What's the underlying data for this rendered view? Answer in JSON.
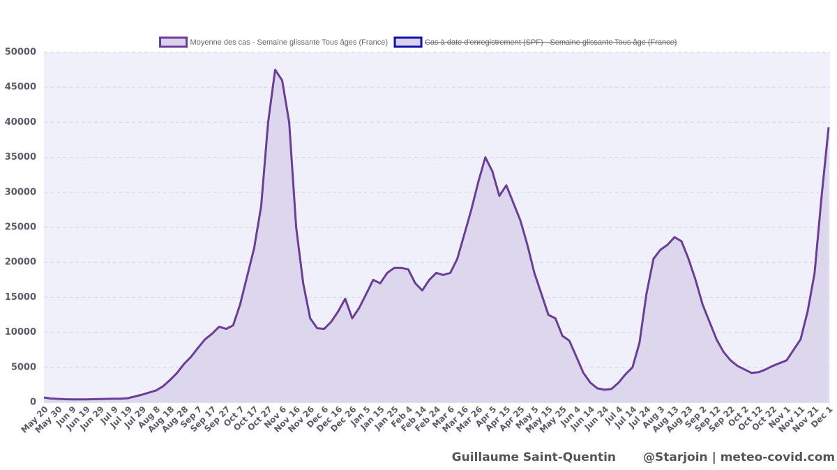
{
  "chart_data": {
    "type": "line",
    "series": [
      {
        "name": "Moyenne des cas - Semaine glissante Tous âges (France)",
        "color": "#6a3d9a",
        "fill": "#d9d2ea",
        "values": [
          700,
          550,
          500,
          450,
          430,
          420,
          430,
          450,
          480,
          500,
          520,
          520,
          600,
          850,
          1100,
          1400,
          1700,
          2300,
          3200,
          4200,
          5500,
          6500,
          7800,
          9000,
          9800,
          10800,
          10500,
          11000,
          14000,
          18000,
          22000,
          28000,
          40000,
          47500,
          46000,
          40000,
          25000,
          17000,
          12000,
          10600,
          10500,
          11500,
          13000,
          14800,
          12000,
          13500,
          15500,
          17500,
          17000,
          18500,
          19200,
          19200,
          19000,
          17000,
          16000,
          17500,
          18500,
          18200,
          18500,
          20500,
          24000,
          27500,
          31500,
          35000,
          33000,
          29500,
          31000,
          28500,
          26000,
          22500,
          18500,
          15500,
          12500,
          12000,
          9500,
          8800,
          6500,
          4200,
          2800,
          2000,
          1800,
          1900,
          2800,
          4000,
          5000,
          8500,
          15500,
          20500,
          21800,
          22500,
          23600,
          23000,
          20500,
          17500,
          14000,
          11500,
          9000,
          7200,
          6000,
          5200,
          4700,
          4200,
          4300,
          4700,
          5200,
          5600,
          6000,
          7500,
          9000,
          13000,
          18500,
          29500,
          39300
        ]
      },
      {
        "name": "Cas à date d'enregistrement (SPF) - Semaine glissante Tous âge (France)",
        "color": "#1010b0",
        "fill": "#d9d2ea",
        "hidden": true
      }
    ],
    "categories": [
      "May 20",
      null,
      "May 30",
      null,
      "Jun 9",
      null,
      "Jun 19",
      null,
      "Jun 29",
      null,
      "Jul 9",
      null,
      "Jul 19",
      null,
      "Jul 29",
      null,
      "Aug 8",
      null,
      "Aug 18",
      null,
      "Aug 28",
      null,
      "Sep 7",
      null,
      "Sep 17",
      null,
      "Sep 27",
      null,
      "Oct 7",
      null,
      "Oct 17",
      null,
      "Oct 27",
      null,
      "Nov 6",
      null,
      "Nov 16",
      null,
      "Nov 26",
      null,
      "Dec 6",
      null,
      "Dec 16",
      null,
      "Dec 26",
      null,
      "Jan 5",
      null,
      "Jan 15",
      null,
      "Jan 25",
      null,
      "Feb 4",
      null,
      "Feb 14",
      null,
      "Feb 24",
      null,
      "Mar 6",
      null,
      "Mar 16",
      null,
      "Mar 26",
      null,
      "Apr 5",
      null,
      "Apr 15",
      null,
      "Apr 25",
      null,
      "May 5",
      null,
      "May 15",
      null,
      "May 25",
      null,
      "Jun 4",
      null,
      "Jun 14",
      null,
      "Jun 24",
      null,
      "Jul 4",
      null,
      "Jul 14",
      null,
      "Jul 24",
      null,
      "Aug 3",
      null,
      "Aug 13",
      null,
      "Aug 23",
      null,
      "Sep 2",
      null,
      "Sep 12",
      null,
      "Sep 22",
      null,
      "Oct 2",
      null,
      "Oct 12",
      null,
      "Oct 22",
      null,
      "Nov 1",
      null,
      "Nov 11",
      null,
      "Nov 21",
      null,
      "Dec 1"
    ],
    "ylim": [
      0,
      50000
    ],
    "yticks": [
      0,
      5000,
      10000,
      15000,
      20000,
      25000,
      30000,
      35000,
      40000,
      45000,
      50000
    ],
    "grid": true,
    "legend": "top",
    "footer": {
      "author": "Guillaume Saint-Quentin",
      "handle": "@Starjoin | meteo-covid.com"
    }
  }
}
